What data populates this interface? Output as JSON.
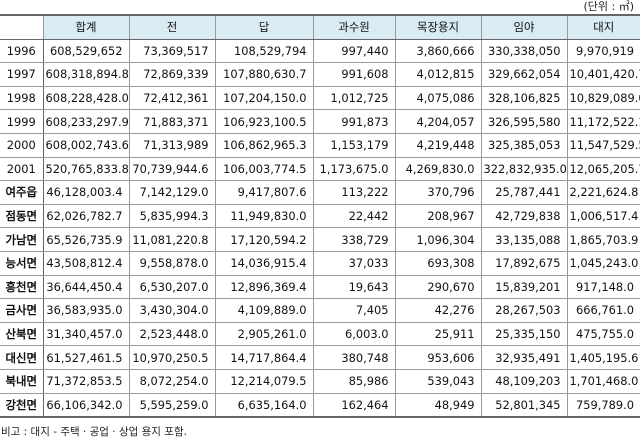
{
  "unit_label": "(단위 : ㎡)",
  "table": {
    "headers": [
      "",
      "합계",
      "전",
      "답",
      "과수원",
      "목장용지",
      "임야",
      "대지"
    ],
    "rows": [
      [
        "1996",
        "608,529,652",
        "73,369,517",
        "108,529,794",
        "997,440",
        "3,860,666",
        "330,338,050",
        "9,970,919"
      ],
      [
        "1997",
        "608,318,894.8",
        "72,869,339",
        "107,880,630.7",
        "991,608",
        "4,012,815",
        "329,662,054",
        "10,401,420.7"
      ],
      [
        "1998",
        "608,228,428.0",
        "72,412,361",
        "107,204,150.0",
        "1,012,725",
        "4,075,086",
        "328,106,825",
        "10,829,089.0"
      ],
      [
        "1999",
        "608,233,297.9",
        "71,883,371",
        "106,923,100.5",
        "991,873",
        "4,204,057",
        "326,595,580",
        "11,172,522.1"
      ],
      [
        "2000",
        "608,002,743.6",
        "71,313,989",
        "106,862,965.3",
        "1,153,179",
        "4,219,448",
        "325,385,053",
        "11,547,529.5"
      ],
      [
        "2001",
        "520,765,833.8",
        "70,739,944.6",
        "106,003,774.5",
        "1,173,675.0",
        "4,269,830.0",
        "322,832,935.0",
        "12,065,205.7"
      ],
      [
        "여주읍",
        "46,128,003.4",
        "7,142,129.0",
        "9,417,807.6",
        "113,222",
        "370,796",
        "25,787,441",
        "2,221,624.8"
      ],
      [
        "점동면",
        "62,026,782.7",
        "5,835,994.3",
        "11,949,830.0",
        "22,442",
        "208,967",
        "42,729,838",
        "1,006,517.4"
      ],
      [
        "가남면",
        "65,526,735.9",
        "11,081,220.8",
        "17,120,594.2",
        "338,729",
        "1,096,304",
        "33,135,088",
        "1,865,703.9"
      ],
      [
        "능서면",
        "43,508,812.4",
        "9,558,878.0",
        "14,036,915.4",
        "37,033",
        "693,308",
        "17,892,675",
        "1,045,243.0"
      ],
      [
        "흥천면",
        "36,644,450.4",
        "6,530,207.0",
        "12,896,369.4",
        "19,643",
        "290,670",
        "15,839,201",
        "917,148.0"
      ],
      [
        "금사면",
        "36,583,935.0",
        "3,430,304.0",
        "4,109,889.0",
        "7,405",
        "42,276",
        "28,267,503",
        "666,761.0"
      ],
      [
        "산북면",
        "31,340,457.0",
        "2,523,448.0",
        "2,905,261.0",
        "6,003.0",
        "25,911",
        "25,335,150",
        "475,755.0"
      ],
      [
        "대신면",
        "61,527,461.5",
        "10,970,250.5",
        "14,717,864.4",
        "380,748",
        "953,606",
        "32,935,491",
        "1,405,195.6"
      ],
      [
        "북내면",
        "71,372,853.5",
        "8,072,254.0",
        "12,214,079.5",
        "85,986",
        "539,043",
        "48,109,203",
        "1,701,468.0"
      ],
      [
        "강천면",
        "66,106,342.0",
        "5,595,259.0",
        "6,635,164.0",
        "162,464",
        "48,949",
        "52,801,345",
        "759,789.0"
      ]
    ]
  },
  "note": "비고 : 대지 - 주택 · 공업 · 상업 용지 포함."
}
